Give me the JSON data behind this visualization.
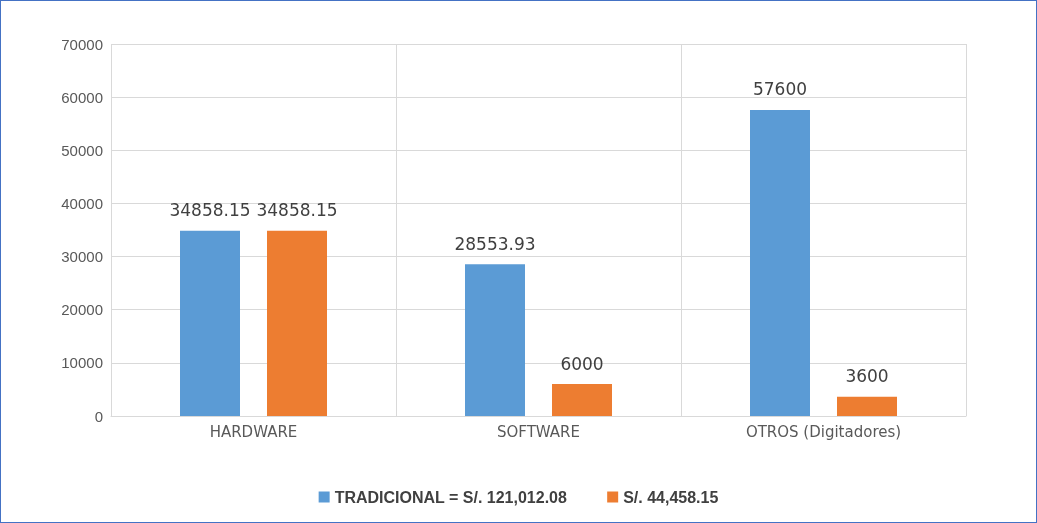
{
  "chart_data": {
    "type": "bar",
    "categories": [
      "HARDWARE",
      "SOFTWARE",
      "OTROS (Digitadores)"
    ],
    "series": [
      {
        "name": "TRADICIONAL = S/. 121,012.08",
        "color": "#5b9bd5",
        "values": [
          34858.15,
          28553.93,
          57600
        ]
      },
      {
        "name": "S/. 44,458.15",
        "color": "#ed7d31",
        "values": [
          34858.15,
          6000,
          3600
        ]
      }
    ],
    "ylim": [
      0,
      70000
    ],
    "yticks": [
      0,
      10000,
      20000,
      30000,
      40000,
      50000,
      60000,
      70000
    ],
    "grid": true,
    "legend": "bottom",
    "data_labels": true
  }
}
